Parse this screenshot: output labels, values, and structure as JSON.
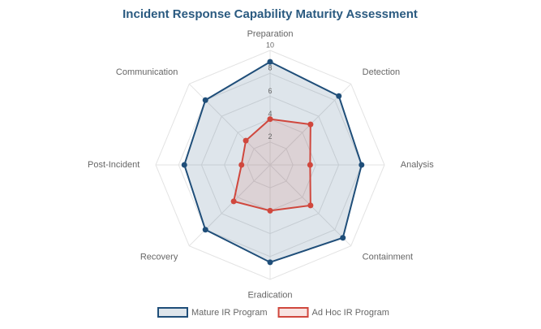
{
  "chart_data": {
    "type": "radar",
    "title": "Incident Response Capability Maturity Assessment",
    "categories": [
      "Preparation",
      "Detection",
      "Analysis",
      "Containment",
      "Eradication",
      "Recovery",
      "Post-Incident",
      "Communication"
    ],
    "series": [
      {
        "name": "Mature IR Program",
        "color": "#1f4e79",
        "values": [
          9,
          8.5,
          8,
          9,
          8.5,
          8,
          7.5,
          8
        ]
      },
      {
        "name": "Ad Hoc IR Program",
        "color": "#d0473d",
        "values": [
          4,
          5,
          3.5,
          5,
          4,
          4.5,
          2.5,
          3
        ]
      }
    ],
    "rlim": [
      0,
      10
    ],
    "rticks": [
      2,
      4,
      6,
      8,
      10
    ],
    "grid": true,
    "legend": "bottom"
  }
}
